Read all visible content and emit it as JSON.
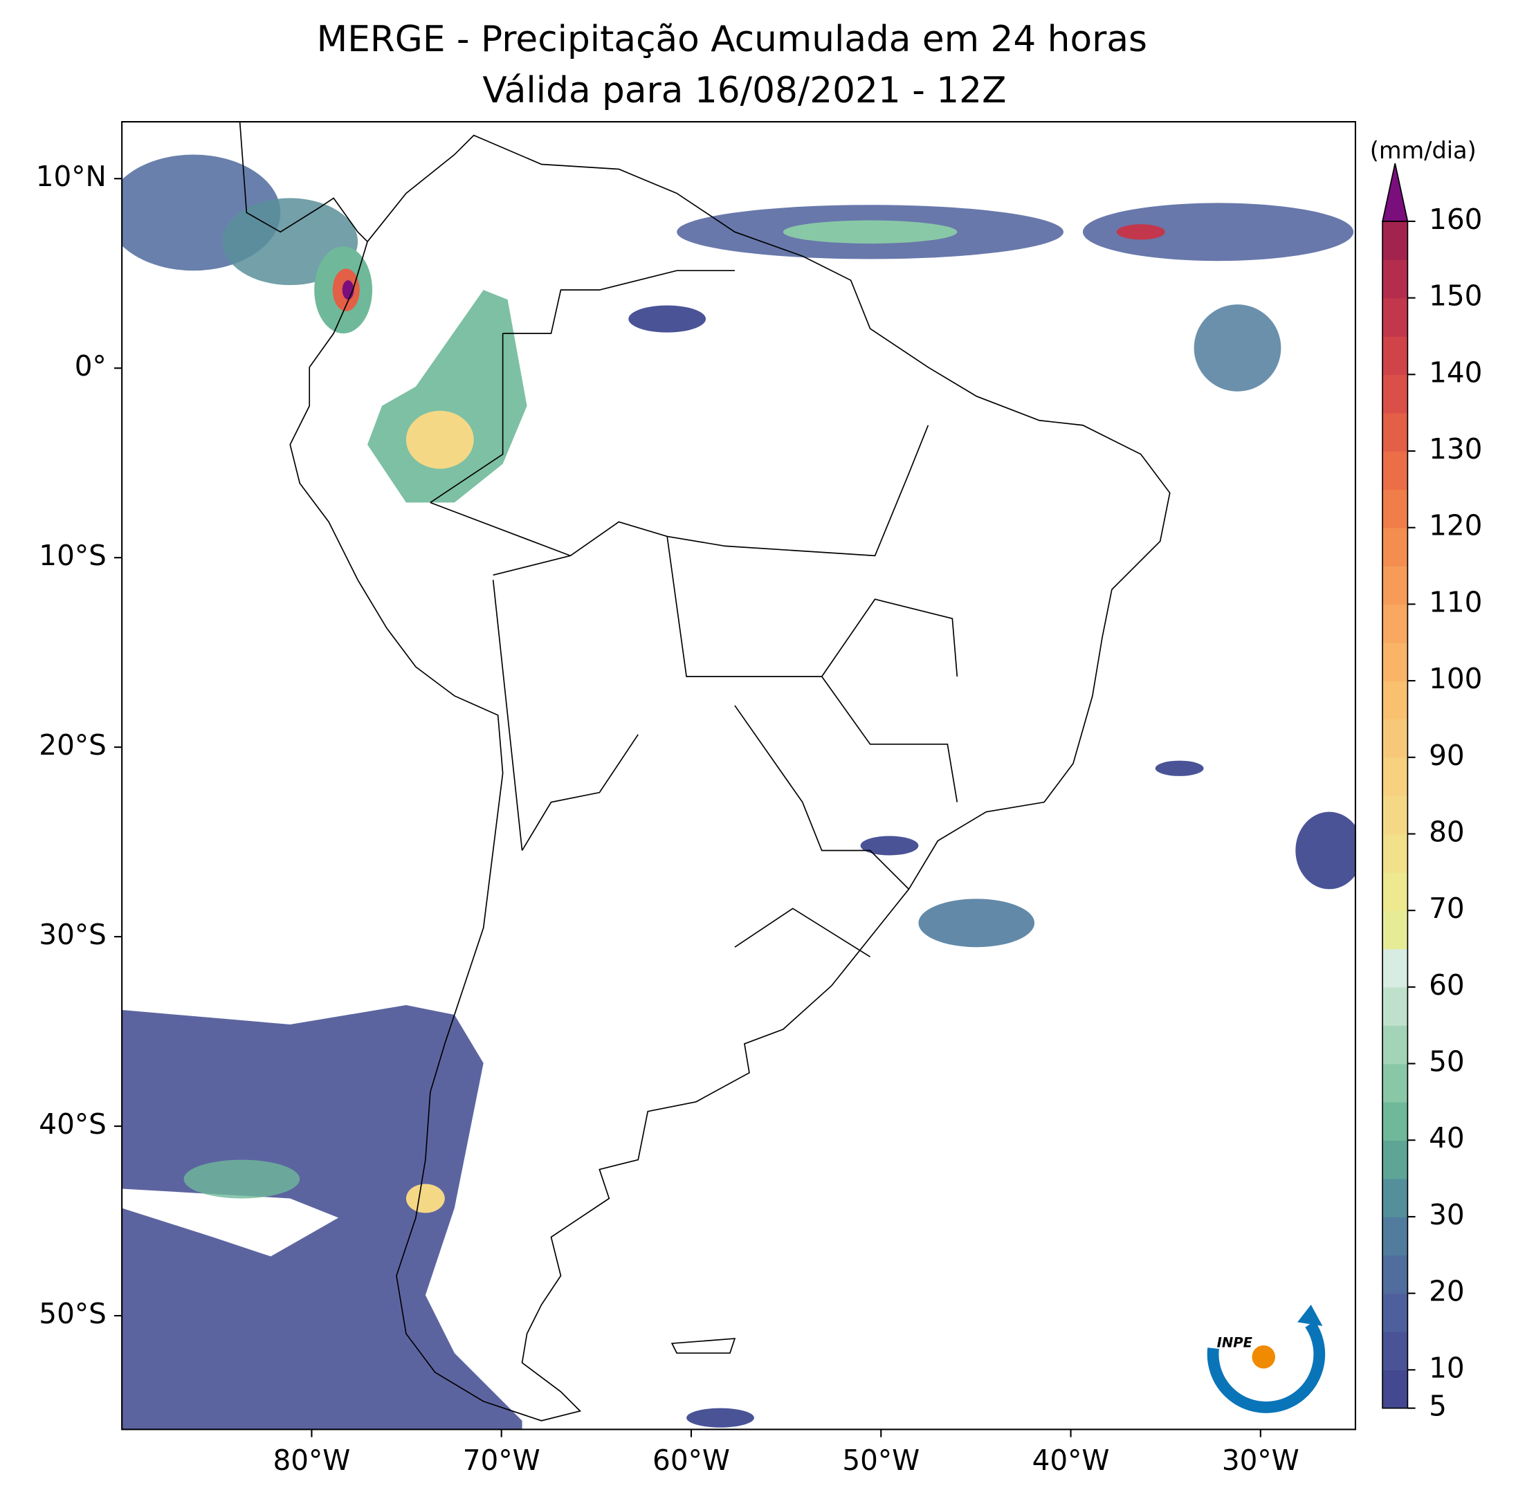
{
  "title": [
    "MERGE - Precipitação Acumulada em 24 horas",
    "Válida para 16/08/2021 - 12Z"
  ],
  "map": {
    "type": "map",
    "xlim": [
      -90,
      -25
    ],
    "ylim": [
      -56,
      13
    ],
    "xticks": [
      {
        "value": -80,
        "label": "80°W"
      },
      {
        "value": -70,
        "label": "70°W"
      },
      {
        "value": -60,
        "label": "60°W"
      },
      {
        "value": -50,
        "label": "50°W"
      },
      {
        "value": -40,
        "label": "40°W"
      },
      {
        "value": -30,
        "label": "30°W"
      }
    ],
    "yticks": [
      {
        "value": 10,
        "label": "10°N"
      },
      {
        "value": 0,
        "label": "0°"
      },
      {
        "value": -10,
        "label": "10°S"
      },
      {
        "value": -20,
        "label": "20°S"
      },
      {
        "value": -30,
        "label": "30°S"
      },
      {
        "value": -40,
        "label": "40°S"
      },
      {
        "value": -50,
        "label": "50°S"
      }
    ]
  },
  "colorbar": {
    "label": "(mm/dia)",
    "lim": [
      5,
      160
    ],
    "levels": [
      5,
      10,
      15,
      20,
      25,
      30,
      35,
      40,
      45,
      50,
      55,
      60,
      65,
      70,
      75,
      80,
      85,
      90,
      95,
      100,
      105,
      110,
      115,
      120,
      125,
      130,
      135,
      140,
      145,
      150,
      155,
      160
    ],
    "colors": [
      "#434890",
      "#4a5396",
      "#4e609c",
      "#506d9e",
      "#517c9e",
      "#54909c",
      "#5ea596",
      "#6fb99a",
      "#89c8a7",
      "#a3d4b7",
      "#bfe1cb",
      "#d7ece2",
      "#e6ec96",
      "#eee88f",
      "#f2e08a",
      "#f5d886",
      "#f7d080",
      "#f8c87a",
      "#f9c070",
      "#f9b468",
      "#f8a860",
      "#f69c58",
      "#f48e50",
      "#f07e4a",
      "#eb6e46",
      "#e35f46",
      "#da5048",
      "#cf4349",
      "#c2374b",
      "#b42d4d",
      "#a3234f"
    ],
    "extend_color": "#7b0e7d",
    "ticks": [
      5,
      10,
      20,
      30,
      40,
      50,
      60,
      70,
      80,
      90,
      100,
      110,
      120,
      130,
      140,
      150,
      160
    ]
  },
  "logo": "INPE"
}
